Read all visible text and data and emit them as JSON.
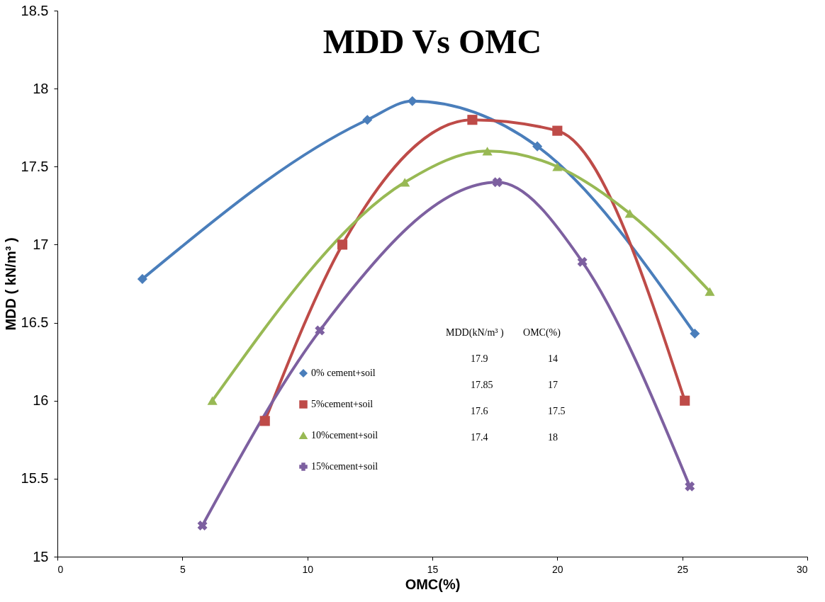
{
  "chart_data": {
    "type": "line",
    "title": "MDD Vs OMC",
    "xlabel": "OMC(%)",
    "ylabel": "MDD ( kN/m³ )",
    "xlim": [
      0,
      30
    ],
    "xticks": [
      0,
      5,
      10,
      15,
      20,
      25,
      30
    ],
    "ylim": [
      15,
      18.5
    ],
    "yticks": [
      15,
      15.5,
      16,
      16.5,
      17,
      17.5,
      18,
      18.5
    ],
    "grid": false,
    "legend": "bottom left",
    "series": [
      {
        "name": "0% cement+soil",
        "color": "#4a7ebb",
        "marker": "diamond",
        "x": [
          3.4,
          12.4,
          14.2,
          19.2,
          25.5
        ],
        "values": [
          16.78,
          17.8,
          17.92,
          17.63,
          16.43
        ]
      },
      {
        "name": "5%cement+soil",
        "color": "#be4b48",
        "marker": "square",
        "x": [
          8.3,
          11.4,
          16.6,
          20.0,
          25.1
        ],
        "values": [
          15.87,
          17.0,
          17.8,
          17.73,
          16.0
        ]
      },
      {
        "name": "10%cement+soil",
        "color": "#98b954",
        "marker": "triangle",
        "x": [
          6.2,
          13.9,
          17.2,
          20.0,
          22.9,
          26.1
        ],
        "values": [
          16.0,
          17.4,
          17.6,
          17.5,
          17.2,
          16.7
        ]
      },
      {
        "name": "15%cement+soil",
        "color": "#7d60a0",
        "marker": "cross",
        "x": [
          5.8,
          10.5,
          17.6,
          21.0,
          25.3
        ],
        "values": [
          15.2,
          16.45,
          17.4,
          16.89,
          15.45
        ]
      }
    ],
    "annotations": [
      "MDD(kN/m³ )",
      "OMC(%)",
      "17.9",
      "14",
      "17.85",
      "17",
      "17.6",
      "17.5",
      "17.4",
      "18"
    ]
  }
}
